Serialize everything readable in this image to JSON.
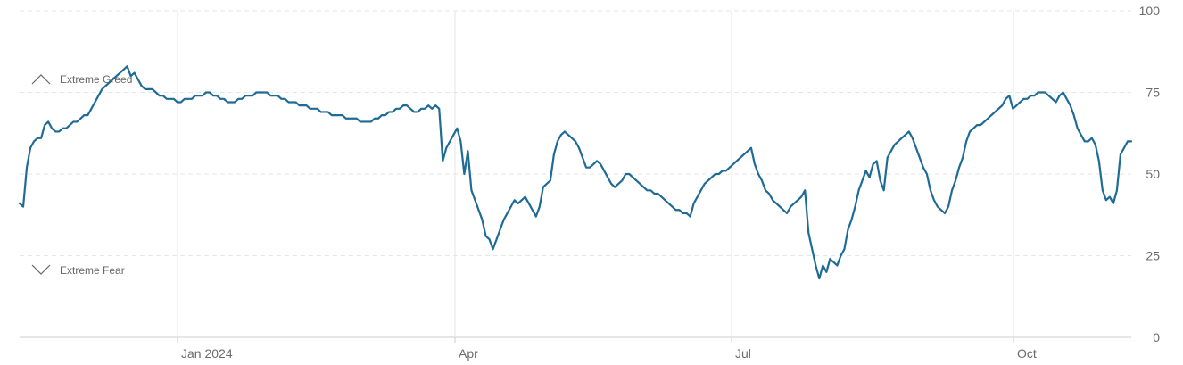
{
  "chart_data": {
    "type": "line",
    "title": "",
    "xlabel": "",
    "ylabel": "",
    "ylim": [
      0,
      100
    ],
    "y_ticks": [
      0,
      25,
      50,
      75,
      100
    ],
    "x_tick_labels": [
      "Jan 2024",
      "Apr",
      "Jul",
      "Oct"
    ],
    "band_labels": {
      "greed": "Extreme Greed",
      "fear": "Extreme Fear"
    },
    "grid": true,
    "colors": {
      "line": "#1e6b96",
      "grid": "#e6e6e6",
      "axis": "#cccccc",
      "text": "#6b6b6b"
    },
    "series": [
      {
        "values": [
          41,
          40,
          52,
          58,
          60,
          61,
          61,
          65,
          66,
          64,
          63,
          63,
          64,
          64,
          65,
          66,
          66,
          67,
          68,
          68,
          70,
          72,
          74,
          76,
          77,
          78,
          79,
          80,
          81,
          82,
          83,
          80,
          81,
          79,
          77,
          76,
          76,
          76,
          75,
          74,
          74,
          73,
          73,
          73,
          72,
          72,
          73,
          73,
          73,
          74,
          74,
          74,
          75,
          75,
          74,
          74,
          73,
          73,
          72,
          72,
          72,
          73,
          73,
          74,
          74,
          74,
          75,
          75,
          75,
          75,
          74,
          74,
          74,
          73,
          73,
          72,
          72,
          72,
          71,
          71,
          71,
          70,
          70,
          70,
          69,
          69,
          69,
          68,
          68,
          68,
          68,
          67,
          67,
          67,
          67,
          66,
          66,
          66,
          66,
          67,
          67,
          68,
          68,
          69,
          69,
          70,
          70,
          71,
          71,
          70,
          69,
          69,
          70,
          70,
          71,
          70,
          71,
          70,
          54,
          58,
          60,
          62,
          64,
          60,
          50,
          57,
          45,
          42,
          39,
          36,
          31,
          30,
          27,
          30,
          33,
          36,
          38,
          40,
          42,
          41,
          42,
          43,
          41,
          39,
          37,
          40,
          46,
          47,
          48,
          56,
          60,
          62,
          63,
          62,
          61,
          60,
          58,
          55,
          52,
          52,
          53,
          54,
          53,
          51,
          49,
          47,
          46,
          47,
          48,
          50,
          50,
          49,
          48,
          47,
          46,
          45,
          45,
          44,
          44,
          43,
          42,
          41,
          40,
          39,
          39,
          38,
          38,
          37,
          41,
          43,
          45,
          47,
          48,
          49,
          50,
          50,
          51,
          51,
          52,
          53,
          54,
          55,
          56,
          57,
          58,
          53,
          50,
          48,
          45,
          44,
          42,
          41,
          40,
          39,
          38,
          40,
          41,
          42,
          43,
          45,
          32,
          27,
          22,
          18,
          22,
          20,
          24,
          23,
          22,
          25,
          27,
          33,
          36,
          40,
          45,
          48,
          51,
          49,
          53,
          54,
          48,
          45,
          55,
          57,
          59,
          60,
          61,
          62,
          63,
          61,
          58,
          55,
          52,
          50,
          45,
          42,
          40,
          39,
          38,
          40,
          45,
          48,
          52,
          55,
          60,
          63,
          64,
          65,
          65,
          66,
          67,
          68,
          69,
          70,
          71,
          73,
          74,
          70,
          71,
          72,
          73,
          73,
          74,
          74,
          75,
          75,
          75,
          74,
          73,
          72,
          74,
          75,
          73,
          71,
          68,
          64,
          62,
          60,
          60,
          61,
          59,
          54,
          45,
          42,
          43,
          41,
          45,
          56,
          58,
          60,
          60
        ]
      }
    ]
  }
}
